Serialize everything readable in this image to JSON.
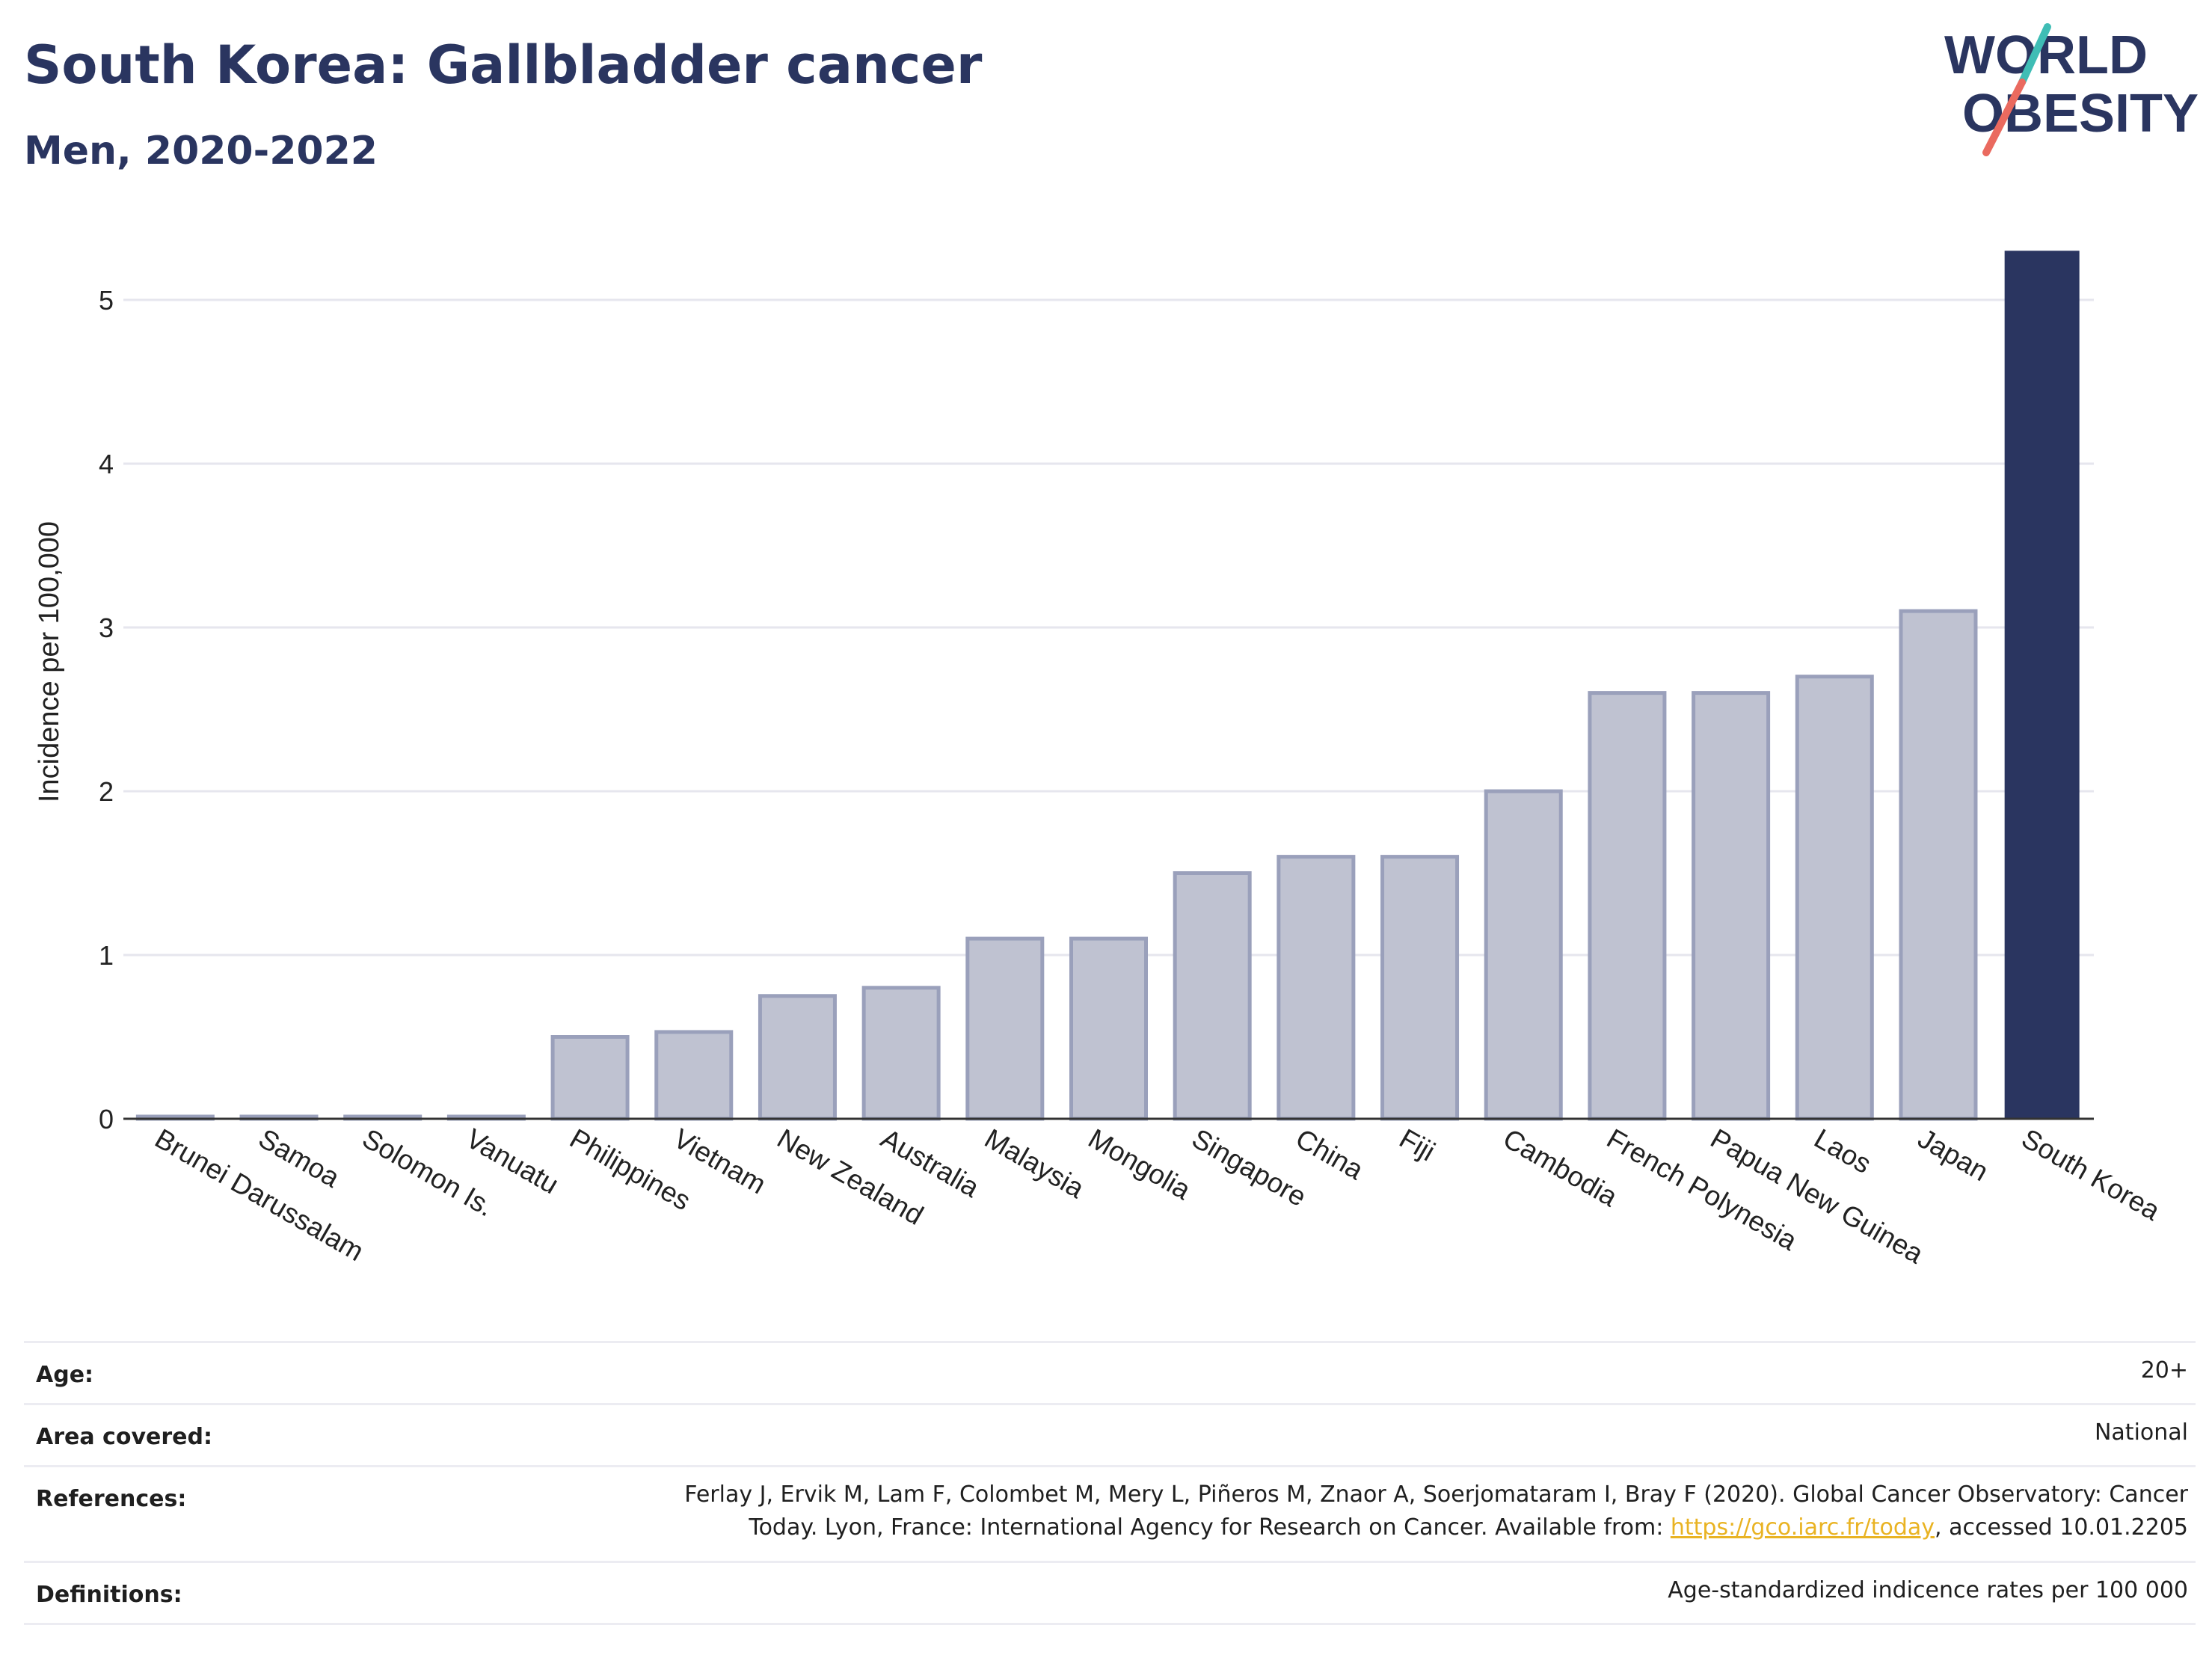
{
  "header": {
    "title": "South Korea: Gallbladder cancer",
    "subtitle": "Men, 2020-2022",
    "logo_line1": "WORLD",
    "logo_line2": "OBESITY"
  },
  "colors": {
    "highlight": "#2a3560",
    "bar_fill": "#bfc2d1",
    "bar_stroke": "#9aa0bb",
    "grid": "#e6e6ee",
    "logo_teal": "#3fbdb5",
    "logo_coral": "#ea6a5f",
    "link": "#e9b323"
  },
  "chart_data": {
    "type": "bar",
    "ylabel": "Incidence per 100,000",
    "xlabel": "",
    "ylim": [
      0,
      5.4
    ],
    "yticks": [
      0,
      1,
      2,
      3,
      4,
      5
    ],
    "grid": true,
    "categories": [
      "Brunei Darussalam",
      "Samoa",
      "Solomon Is.",
      "Vanuatu",
      "Philippines",
      "Vietnam",
      "New Zealand",
      "Australia",
      "Malaysia",
      "Mongolia",
      "Singapore",
      "China",
      "Fiji",
      "Cambodia",
      "French Polynesia",
      "Papua New Guinea",
      "Laos",
      "Japan",
      "South Korea"
    ],
    "values": [
      0,
      0,
      0,
      0,
      0.5,
      0.53,
      0.75,
      0.8,
      1.1,
      1.1,
      1.5,
      1.6,
      1.6,
      2.0,
      2.6,
      2.6,
      2.7,
      3.1,
      5.3
    ],
    "highlight": "South Korea"
  },
  "meta": {
    "age_label": "Age:",
    "age_value": "20+",
    "area_label": "Area covered:",
    "area_value": "National",
    "references_label": "References:",
    "references_line1": "Ferlay J, Ervik M, Lam F, Colombet M, Mery L, Piñeros M, Znaor A, Soerjomataram I, Bray F (2020). Global Cancer Observatory: Cancer",
    "references_line2_prefix": "Today. Lyon, France: International Agency for Research on Cancer. Available from: ",
    "references_link": "https://gco.iarc.fr/today",
    "references_line2_suffix": ", accessed 10.01.2205",
    "definitions_label": "Definitions:",
    "definitions_value": "Age-standardized indicence rates per 100 000"
  }
}
